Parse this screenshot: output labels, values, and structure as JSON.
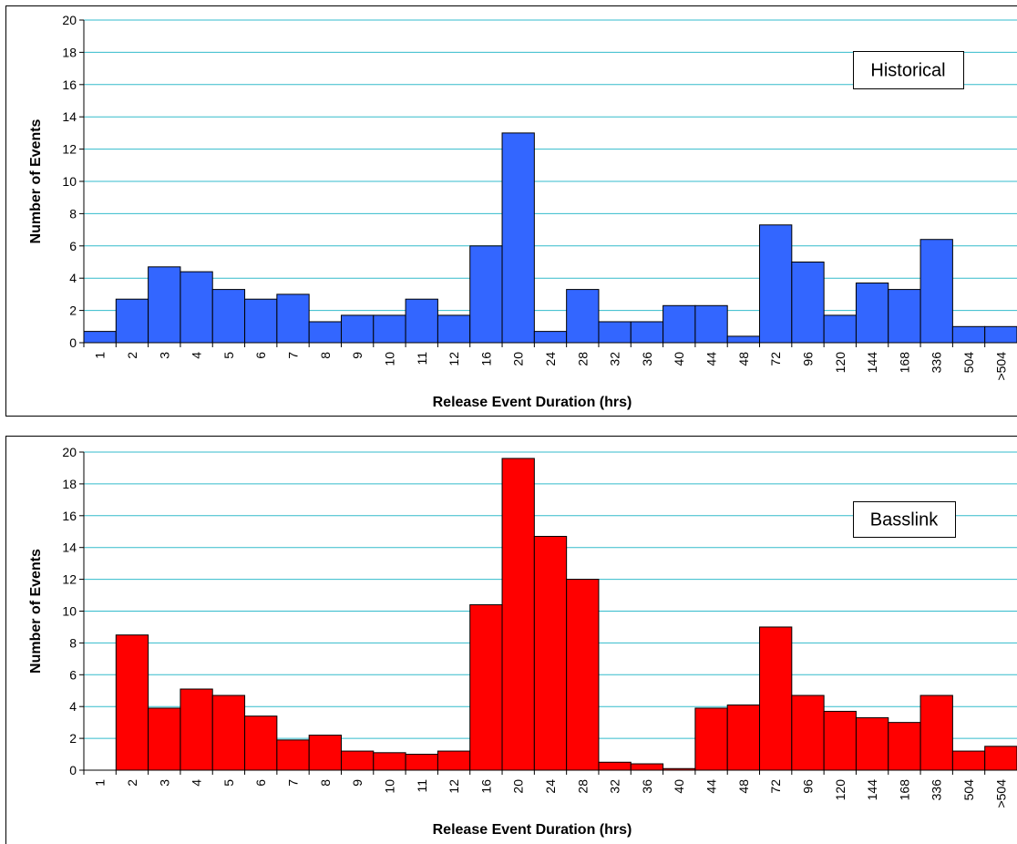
{
  "chart_data": [
    {
      "type": "bar",
      "title": "Historical",
      "xlabel": "Release Event Duration (hrs)",
      "ylabel": "Number of Events",
      "categories": [
        "1",
        "2",
        "3",
        "4",
        "5",
        "6",
        "7",
        "8",
        "9",
        "10",
        "11",
        "12",
        "16",
        "20",
        "24",
        "28",
        "32",
        "36",
        "40",
        "44",
        "48",
        "72",
        "96",
        "120",
        "144",
        "168",
        "336",
        "504",
        ">504"
      ],
      "values": [
        0.7,
        2.7,
        4.7,
        4.4,
        3.3,
        2.7,
        3.0,
        1.3,
        1.7,
        1.7,
        2.7,
        1.7,
        6.0,
        13.0,
        0.7,
        3.3,
        1.3,
        1.3,
        2.3,
        2.3,
        0.4,
        7.3,
        5.0,
        1.7,
        3.7,
        3.3,
        6.4,
        1.0,
        1.0
      ],
      "color": "#3366ff",
      "ylim": [
        0,
        20
      ],
      "yticks": [
        0,
        2,
        4,
        6,
        8,
        10,
        12,
        14,
        16,
        18,
        20
      ],
      "grid": true
    },
    {
      "type": "bar",
      "title": "Basslink",
      "xlabel": "Release Event Duration (hrs)",
      "ylabel": "Number of Events",
      "categories": [
        "1",
        "2",
        "3",
        "4",
        "5",
        "6",
        "7",
        "8",
        "9",
        "10",
        "11",
        "12",
        "16",
        "20",
        "24",
        "28",
        "32",
        "36",
        "40",
        "44",
        "48",
        "72",
        "96",
        "120",
        "144",
        "168",
        "336",
        "504",
        ">504"
      ],
      "values": [
        0,
        8.5,
        3.9,
        5.1,
        4.7,
        3.4,
        1.9,
        2.2,
        1.2,
        1.1,
        1.0,
        1.2,
        10.4,
        19.6,
        14.7,
        12.0,
        0.5,
        0.4,
        0.1,
        3.9,
        4.1,
        9.0,
        4.7,
        3.7,
        3.3,
        3.0,
        4.7,
        1.2,
        1.5
      ],
      "color": "#ff0000",
      "ylim": [
        0,
        20
      ],
      "yticks": [
        0,
        2,
        4,
        6,
        8,
        10,
        12,
        14,
        16,
        18,
        20
      ],
      "grid": true
    }
  ]
}
